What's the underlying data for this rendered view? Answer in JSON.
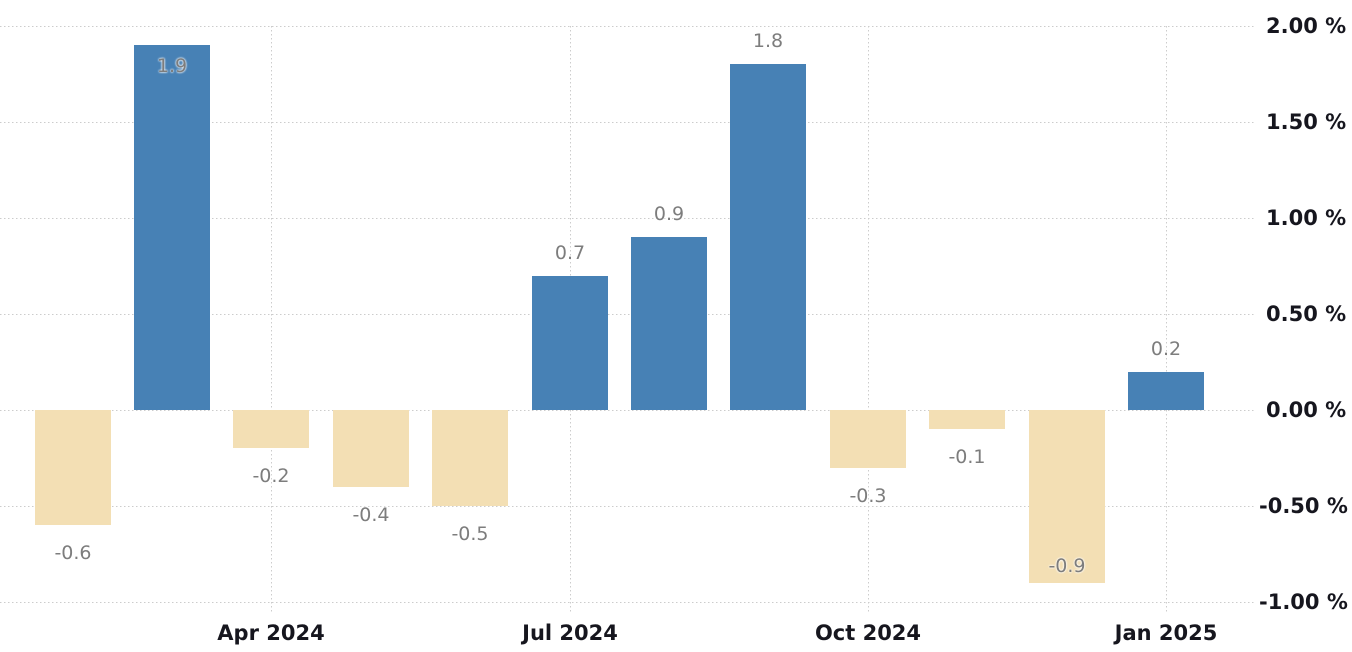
{
  "chart_data": {
    "type": "bar",
    "title": "",
    "xlabel": "",
    "ylabel": "",
    "values": [
      -0.6,
      1.9,
      -0.2,
      -0.4,
      -0.5,
      0.7,
      0.9,
      1.8,
      -0.3,
      -0.1,
      -0.9,
      0.2
    ],
    "data_labels": [
      "-0.6",
      "1.9",
      "-0.2",
      "-0.4",
      "-0.5",
      "0.7",
      "0.9",
      "1.8",
      "-0.3",
      "-0.1",
      "-0.9",
      "0.2"
    ],
    "x_ticks": [
      {
        "bar_index": 2,
        "label": "Apr 2024"
      },
      {
        "bar_index": 5,
        "label": "Jul 2024"
      },
      {
        "bar_index": 8,
        "label": "Oct 2024"
      },
      {
        "bar_index": 11,
        "label": "Jan 2025"
      }
    ],
    "y_ticks": [
      {
        "value": 2.0,
        "label": "2.00 %"
      },
      {
        "value": 1.5,
        "label": "1.50 %"
      },
      {
        "value": 1.0,
        "label": "1.00 %"
      },
      {
        "value": 0.5,
        "label": "0.50 %"
      },
      {
        "value": 0.0,
        "label": "0.00 %"
      },
      {
        "value": -0.5,
        "label": "-0.50 %"
      },
      {
        "value": -1.0,
        "label": "-1.00 %"
      }
    ],
    "ylim": [
      -1.0,
      2.0
    ],
    "y_step": 0.5,
    "grid": "dotted",
    "legend": "none",
    "y_axis_side": "right",
    "colors": {
      "positive_bar": "#4781b5",
      "negative_bar": "#f3dfb4",
      "gridline": "#cccccc",
      "value_label": "#7d7d7d",
      "axis_label": "#16161e",
      "background": "#ffffff"
    }
  }
}
